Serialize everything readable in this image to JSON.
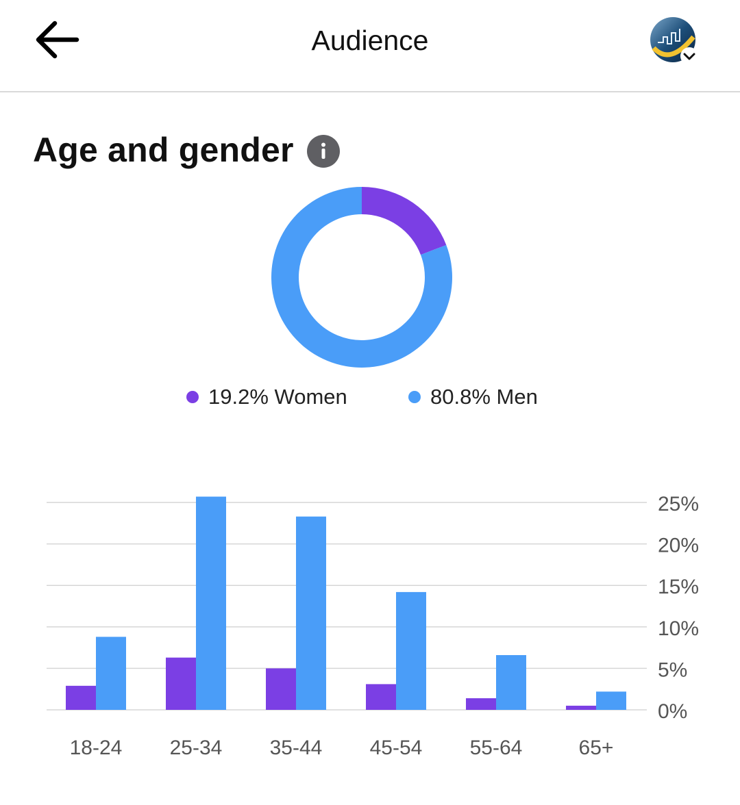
{
  "header": {
    "title": "Audience",
    "back_icon": "arrow-left-icon",
    "avatar_icon": "account-avatar-icon"
  },
  "section": {
    "title": "Age and gender",
    "info_icon": "info-icon"
  },
  "colors": {
    "women": "#7b3fe4",
    "men": "#4a9df8",
    "grid": "#d6d6d6",
    "tick_text": "#555555"
  },
  "legend": {
    "women": "19.2% Women",
    "men": "80.8% Men"
  },
  "chart_data": [
    {
      "type": "pie",
      "title": "",
      "categories": [
        "Women",
        "Men"
      ],
      "values": [
        19.2,
        80.8
      ],
      "donut": true
    },
    {
      "type": "bar",
      "title": "",
      "categories": [
        "18-24",
        "25-34",
        "35-44",
        "45-54",
        "55-64",
        "65+"
      ],
      "series": [
        {
          "name": "Women",
          "values": [
            2.9,
            6.3,
            5.0,
            3.1,
            1.4,
            0.5
          ]
        },
        {
          "name": "Men",
          "values": [
            8.8,
            25.7,
            23.3,
            14.2,
            6.6,
            2.2
          ]
        }
      ],
      "yticks": [
        "0%",
        "5%",
        "10%",
        "15%",
        "20%",
        "25%"
      ],
      "ylim": [
        0,
        25
      ],
      "y_axis_side": "right",
      "grid": true
    }
  ]
}
